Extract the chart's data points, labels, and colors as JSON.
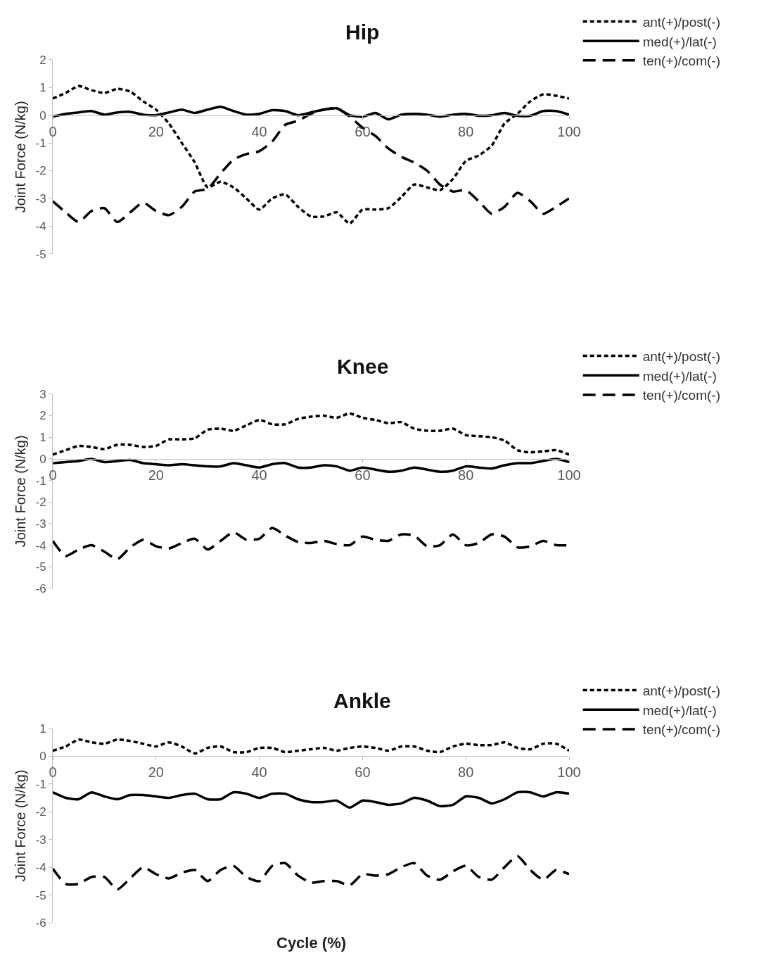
{
  "chart_data": [
    {
      "type": "line",
      "title": "Hip",
      "ylabel": "Joint Force (N/kg)",
      "x": [
        0,
        2.5,
        5,
        7.5,
        10,
        12.5,
        15,
        17.5,
        20,
        22.5,
        25,
        27.5,
        30,
        32.5,
        35,
        37.5,
        40,
        42.5,
        45,
        47.5,
        50,
        52.5,
        55,
        57.5,
        60,
        62.5,
        65,
        67.5,
        70,
        72.5,
        75,
        77.5,
        80,
        82.5,
        85,
        87.5,
        90,
        92.5,
        95,
        97.5,
        100
      ],
      "xlim": [
        0,
        100
      ],
      "xticks": [
        0,
        20,
        40,
        60,
        80,
        100
      ],
      "ylim": [
        -5,
        2
      ],
      "yticks": [
        -5,
        -4,
        -3,
        -2,
        -1,
        0,
        1,
        2
      ],
      "grid": false,
      "legend": "top right",
      "marker": "none",
      "series": [
        {
          "name": "ant(+)/post(-)",
          "color": "#000000",
          "line_style": "dotted",
          "values": [
            0.6,
            0.8,
            1.05,
            0.9,
            0.8,
            0.95,
            0.85,
            0.5,
            0.2,
            -0.3,
            -1.0,
            -1.7,
            -2.6,
            -2.4,
            -2.6,
            -3.0,
            -3.4,
            -3.0,
            -2.85,
            -3.3,
            -3.65,
            -3.65,
            -3.5,
            -3.9,
            -3.4,
            -3.4,
            -3.35,
            -2.95,
            -2.5,
            -2.6,
            -2.7,
            -2.3,
            -1.65,
            -1.45,
            -1.1,
            -0.3,
            0.05,
            0.5,
            0.75,
            0.7,
            0.6
          ]
        },
        {
          "name": "med(+)/lat(-)",
          "color": "#000000",
          "line_style": "solid",
          "values": [
            -0.05,
            0.05,
            0.1,
            0.15,
            0.02,
            0.1,
            0.12,
            0.02,
            0.0,
            0.1,
            0.2,
            0.08,
            0.2,
            0.3,
            0.15,
            0.02,
            0.05,
            0.18,
            0.15,
            0.0,
            0.1,
            0.2,
            0.25,
            0.0,
            -0.05,
            0.08,
            -0.15,
            0.02,
            0.05,
            0.02,
            -0.05,
            0.02,
            0.05,
            -0.02,
            0.0,
            0.08,
            -0.02,
            -0.02,
            0.15,
            0.15,
            0.02
          ]
        },
        {
          "name": "ten(+)/com(-)",
          "color": "#000000",
          "line_style": "dashed",
          "values": [
            -3.1,
            -3.5,
            -3.85,
            -3.45,
            -3.35,
            -3.85,
            -3.5,
            -3.15,
            -3.45,
            -3.6,
            -3.3,
            -2.75,
            -2.65,
            -2.1,
            -1.6,
            -1.4,
            -1.3,
            -0.95,
            -0.35,
            -0.2,
            0.05,
            0.2,
            0.25,
            -0.05,
            -0.45,
            -0.75,
            -1.2,
            -1.5,
            -1.7,
            -2.0,
            -2.5,
            -2.75,
            -2.7,
            -3.1,
            -3.55,
            -3.3,
            -2.8,
            -3.1,
            -3.55,
            -3.3,
            -3.0
          ]
        }
      ]
    },
    {
      "type": "line",
      "title": "Knee",
      "ylabel": "Joint Force (N/kg)",
      "x": [
        0,
        2.5,
        5,
        7.5,
        10,
        12.5,
        15,
        17.5,
        20,
        22.5,
        25,
        27.5,
        30,
        32.5,
        35,
        37.5,
        40,
        42.5,
        45,
        47.5,
        50,
        52.5,
        55,
        57.5,
        60,
        62.5,
        65,
        67.5,
        70,
        72.5,
        75,
        77.5,
        80,
        82.5,
        85,
        87.5,
        90,
        92.5,
        95,
        97.5,
        100
      ],
      "xlim": [
        0,
        100
      ],
      "xticks": [
        0,
        20,
        40,
        60,
        80,
        100
      ],
      "ylim": [
        -6,
        3
      ],
      "yticks": [
        -6,
        -5,
        -4,
        -3,
        -2,
        -1,
        0,
        1,
        2,
        3
      ],
      "grid": false,
      "legend": "top right",
      "marker": "none",
      "series": [
        {
          "name": "ant(+)/post(-)",
          "color": "#000000",
          "line_style": "dotted",
          "values": [
            0.2,
            0.4,
            0.6,
            0.55,
            0.45,
            0.65,
            0.65,
            0.55,
            0.6,
            0.9,
            0.9,
            0.95,
            1.35,
            1.4,
            1.3,
            1.55,
            1.8,
            1.6,
            1.6,
            1.85,
            1.95,
            2.0,
            1.9,
            2.1,
            1.9,
            1.8,
            1.65,
            1.7,
            1.4,
            1.3,
            1.3,
            1.4,
            1.1,
            1.05,
            1.0,
            0.85,
            0.4,
            0.3,
            0.35,
            0.4,
            0.2
          ]
        },
        {
          "name": "med(+)/lat(-)",
          "color": "#000000",
          "line_style": "solid",
          "values": [
            -0.2,
            -0.15,
            -0.1,
            0.0,
            -0.15,
            -0.1,
            -0.05,
            -0.2,
            -0.25,
            -0.3,
            -0.25,
            -0.3,
            -0.35,
            -0.35,
            -0.2,
            -0.3,
            -0.4,
            -0.25,
            -0.2,
            -0.4,
            -0.4,
            -0.3,
            -0.35,
            -0.55,
            -0.4,
            -0.5,
            -0.6,
            -0.55,
            -0.4,
            -0.5,
            -0.6,
            -0.55,
            -0.35,
            -0.4,
            -0.45,
            -0.3,
            -0.2,
            -0.2,
            -0.1,
            0.0,
            -0.15
          ]
        },
        {
          "name": "ten(+)/com(-)",
          "color": "#000000",
          "line_style": "dashed",
          "values": [
            -3.8,
            -4.5,
            -4.2,
            -4.0,
            -4.3,
            -4.65,
            -4.1,
            -3.75,
            -4.05,
            -4.15,
            -3.9,
            -3.7,
            -4.2,
            -3.8,
            -3.4,
            -3.75,
            -3.7,
            -3.2,
            -3.55,
            -3.85,
            -3.9,
            -3.8,
            -3.95,
            -4.0,
            -3.6,
            -3.75,
            -3.8,
            -3.5,
            -3.55,
            -4.05,
            -4.0,
            -3.5,
            -4.0,
            -3.9,
            -3.5,
            -3.6,
            -4.1,
            -4.05,
            -3.8,
            -4.0,
            -4.0
          ]
        }
      ]
    },
    {
      "type": "line",
      "title": "Ankle",
      "xlabel": "Cycle (%)",
      "ylabel": "Joint Force (N/kg)",
      "x": [
        0,
        2.5,
        5,
        7.5,
        10,
        12.5,
        15,
        17.5,
        20,
        22.5,
        25,
        27.5,
        30,
        32.5,
        35,
        37.5,
        40,
        42.5,
        45,
        47.5,
        50,
        52.5,
        55,
        57.5,
        60,
        62.5,
        65,
        67.5,
        70,
        72.5,
        75,
        77.5,
        80,
        82.5,
        85,
        87.5,
        90,
        92.5,
        95,
        97.5,
        100
      ],
      "xlim": [
        0,
        100
      ],
      "xticks": [
        0,
        20,
        40,
        60,
        80,
        100
      ],
      "ylim": [
        -6,
        1
      ],
      "yticks": [
        -6,
        -5,
        -4,
        -3,
        -2,
        -1,
        0,
        1
      ],
      "grid": false,
      "legend": "top right",
      "marker": "none",
      "series": [
        {
          "name": "ant(+)/post(-)",
          "color": "#000000",
          "line_style": "dotted",
          "values": [
            0.2,
            0.35,
            0.6,
            0.5,
            0.45,
            0.6,
            0.55,
            0.45,
            0.35,
            0.5,
            0.35,
            0.1,
            0.3,
            0.35,
            0.15,
            0.15,
            0.3,
            0.3,
            0.15,
            0.2,
            0.25,
            0.3,
            0.2,
            0.3,
            0.35,
            0.3,
            0.2,
            0.35,
            0.35,
            0.2,
            0.15,
            0.35,
            0.45,
            0.4,
            0.4,
            0.5,
            0.3,
            0.25,
            0.45,
            0.45,
            0.2
          ]
        },
        {
          "name": "med(+)/lat(-)",
          "color": "#000000",
          "line_style": "solid",
          "values": [
            -1.3,
            -1.5,
            -1.55,
            -1.3,
            -1.45,
            -1.55,
            -1.4,
            -1.4,
            -1.45,
            -1.5,
            -1.4,
            -1.35,
            -1.55,
            -1.55,
            -1.3,
            -1.35,
            -1.5,
            -1.35,
            -1.35,
            -1.55,
            -1.65,
            -1.65,
            -1.6,
            -1.85,
            -1.6,
            -1.65,
            -1.75,
            -1.7,
            -1.5,
            -1.6,
            -1.8,
            -1.75,
            -1.45,
            -1.5,
            -1.7,
            -1.55,
            -1.3,
            -1.3,
            -1.45,
            -1.3,
            -1.35
          ]
        },
        {
          "name": "ten(+)/com(-)",
          "color": "#000000",
          "line_style": "dashed",
          "values": [
            -4.05,
            -4.6,
            -4.6,
            -4.35,
            -4.35,
            -4.8,
            -4.4,
            -4.0,
            -4.25,
            -4.4,
            -4.2,
            -4.1,
            -4.5,
            -4.1,
            -3.95,
            -4.35,
            -4.5,
            -3.95,
            -3.85,
            -4.3,
            -4.55,
            -4.5,
            -4.5,
            -4.65,
            -4.25,
            -4.3,
            -4.25,
            -4.0,
            -3.85,
            -4.3,
            -4.45,
            -4.15,
            -3.95,
            -4.35,
            -4.45,
            -4.0,
            -3.6,
            -4.1,
            -4.45,
            -4.1,
            -4.25
          ]
        }
      ]
    }
  ]
}
